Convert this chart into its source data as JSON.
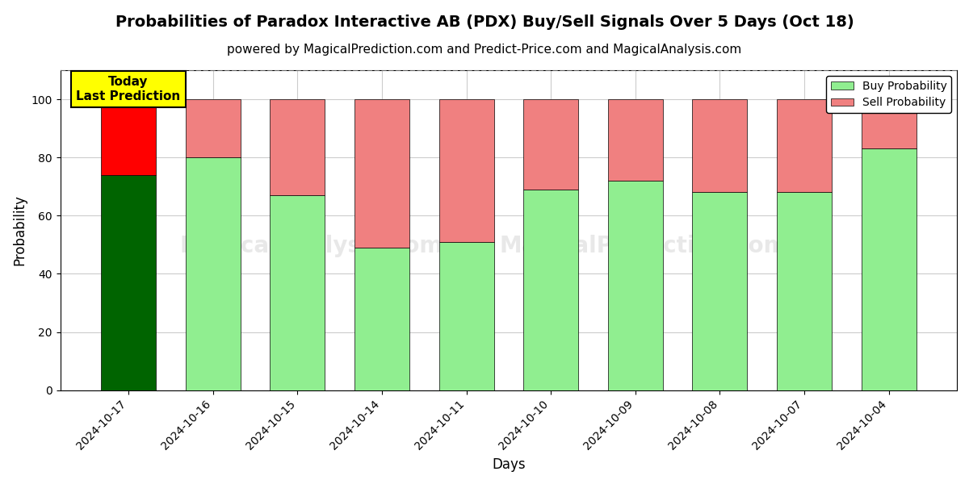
{
  "title": "Probabilities of Paradox Interactive AB (PDX) Buy/Sell Signals Over 5 Days (Oct 18)",
  "subtitle": "powered by MagicalPrediction.com and Predict-Price.com and MagicalAnalysis.com",
  "xlabel": "Days",
  "ylabel": "Probability",
  "dates": [
    "2024-10-17",
    "2024-10-16",
    "2024-10-15",
    "2024-10-14",
    "2024-10-11",
    "2024-10-10",
    "2024-10-09",
    "2024-10-08",
    "2024-10-07",
    "2024-10-04"
  ],
  "buy_values": [
    74,
    80,
    67,
    49,
    51,
    69,
    72,
    68,
    68,
    83
  ],
  "sell_values": [
    26,
    20,
    33,
    51,
    49,
    31,
    28,
    32,
    32,
    17
  ],
  "buy_colors": [
    "#006400",
    "#90EE90",
    "#90EE90",
    "#90EE90",
    "#90EE90",
    "#90EE90",
    "#90EE90",
    "#90EE90",
    "#90EE90",
    "#90EE90"
  ],
  "sell_colors": [
    "#FF0000",
    "#F08080",
    "#F08080",
    "#F08080",
    "#F08080",
    "#F08080",
    "#F08080",
    "#F08080",
    "#F08080",
    "#F08080"
  ],
  "legend_buy_color": "#90EE90",
  "legend_sell_color": "#F08080",
  "ylim": [
    0,
    110
  ],
  "yticks": [
    0,
    20,
    40,
    60,
    80,
    100
  ],
  "dashed_line_y": 110,
  "background_color": "#ffffff",
  "grid_color": "#cccccc",
  "annotation_text": "Today\nLast Prediction",
  "annotation_bg": "#FFFF00",
  "title_fontsize": 14,
  "subtitle_fontsize": 11
}
